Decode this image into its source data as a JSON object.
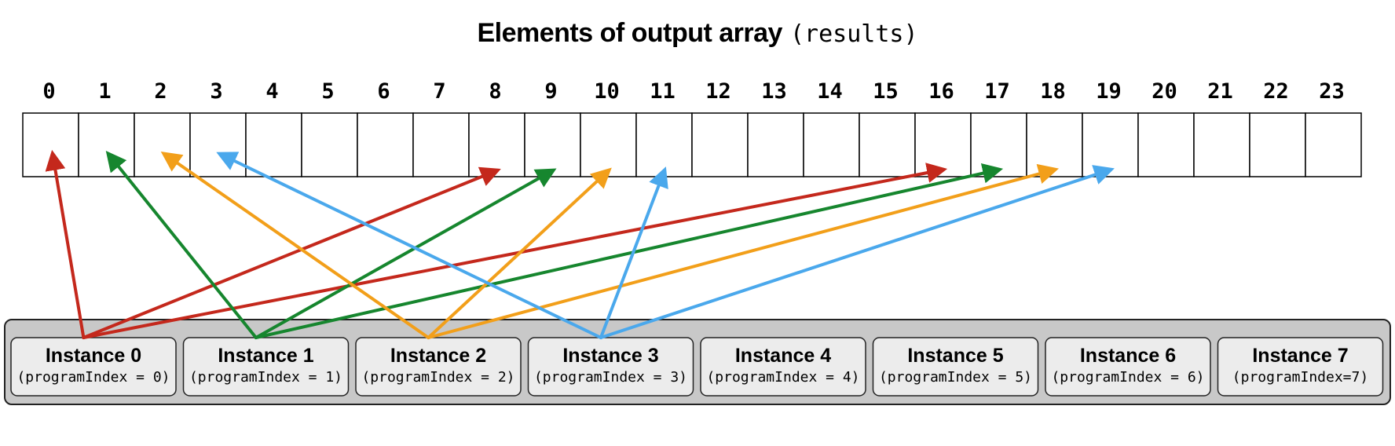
{
  "title": {
    "main": "Elements of output array",
    "code": "(results)"
  },
  "array": {
    "indices": [
      "0",
      "1",
      "2",
      "3",
      "4",
      "5",
      "6",
      "7",
      "8",
      "9",
      "10",
      "11",
      "12",
      "13",
      "14",
      "15",
      "16",
      "17",
      "18",
      "19",
      "20",
      "21",
      "22",
      "23"
    ]
  },
  "instances": [
    {
      "name": "Instance 0",
      "sub": "(programIndex = 0)"
    },
    {
      "name": "Instance 1",
      "sub": "(programIndex = 1)"
    },
    {
      "name": "Instance 2",
      "sub": "(programIndex = 2)"
    },
    {
      "name": "Instance 3",
      "sub": "(programIndex = 3)"
    },
    {
      "name": "Instance 4",
      "sub": "(programIndex = 4)"
    },
    {
      "name": "Instance 5",
      "sub": "(programIndex = 5)"
    },
    {
      "name": "Instance 6",
      "sub": "(programIndex = 6)"
    },
    {
      "name": "Instance 7",
      "sub": "(programIndex=7)"
    }
  ],
  "mapping": [
    {
      "instance": 0,
      "targets": [
        0,
        8,
        16
      ],
      "color": "#c4281c"
    },
    {
      "instance": 1,
      "targets": [
        1,
        9,
        17
      ],
      "color": "#16862e"
    },
    {
      "instance": 2,
      "targets": [
        2,
        10,
        18
      ],
      "color": "#f29f1a"
    },
    {
      "instance": 3,
      "targets": [
        3,
        11,
        19
      ],
      "color": "#4aa8ec"
    }
  ]
}
